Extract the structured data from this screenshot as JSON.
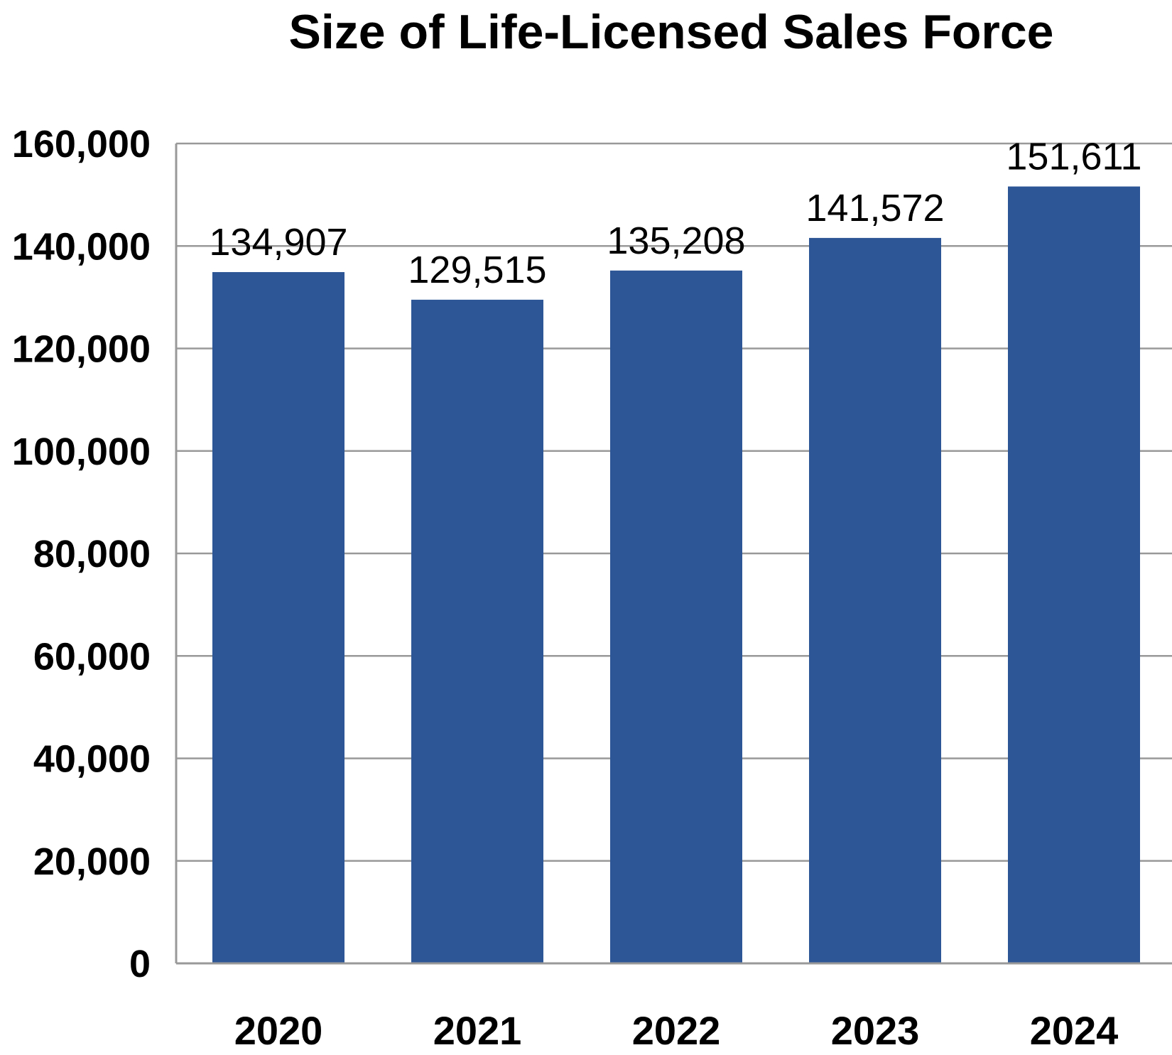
{
  "chart_data": {
    "type": "bar",
    "title": "Size of Life-Licensed Sales Force",
    "xlabel": "",
    "ylabel": "",
    "categories": [
      "2020",
      "2021",
      "2022",
      "2023",
      "2024"
    ],
    "values": [
      134907,
      129515,
      135208,
      141572,
      151611
    ],
    "data_labels": [
      "134,907",
      "129,515",
      "135,208",
      "141,572",
      "151,611"
    ],
    "ylim": [
      0,
      160000
    ],
    "yticks": [
      0,
      20000,
      40000,
      60000,
      80000,
      100000,
      120000,
      140000,
      160000
    ],
    "ytick_labels": [
      "0",
      "20,000",
      "40,000",
      "60,000",
      "80,000",
      "100,000",
      "120,000",
      "140,000",
      "160,000"
    ],
    "grid": true,
    "legend": "none",
    "bar_color": "#2d5697",
    "grid_color": "#999999"
  }
}
